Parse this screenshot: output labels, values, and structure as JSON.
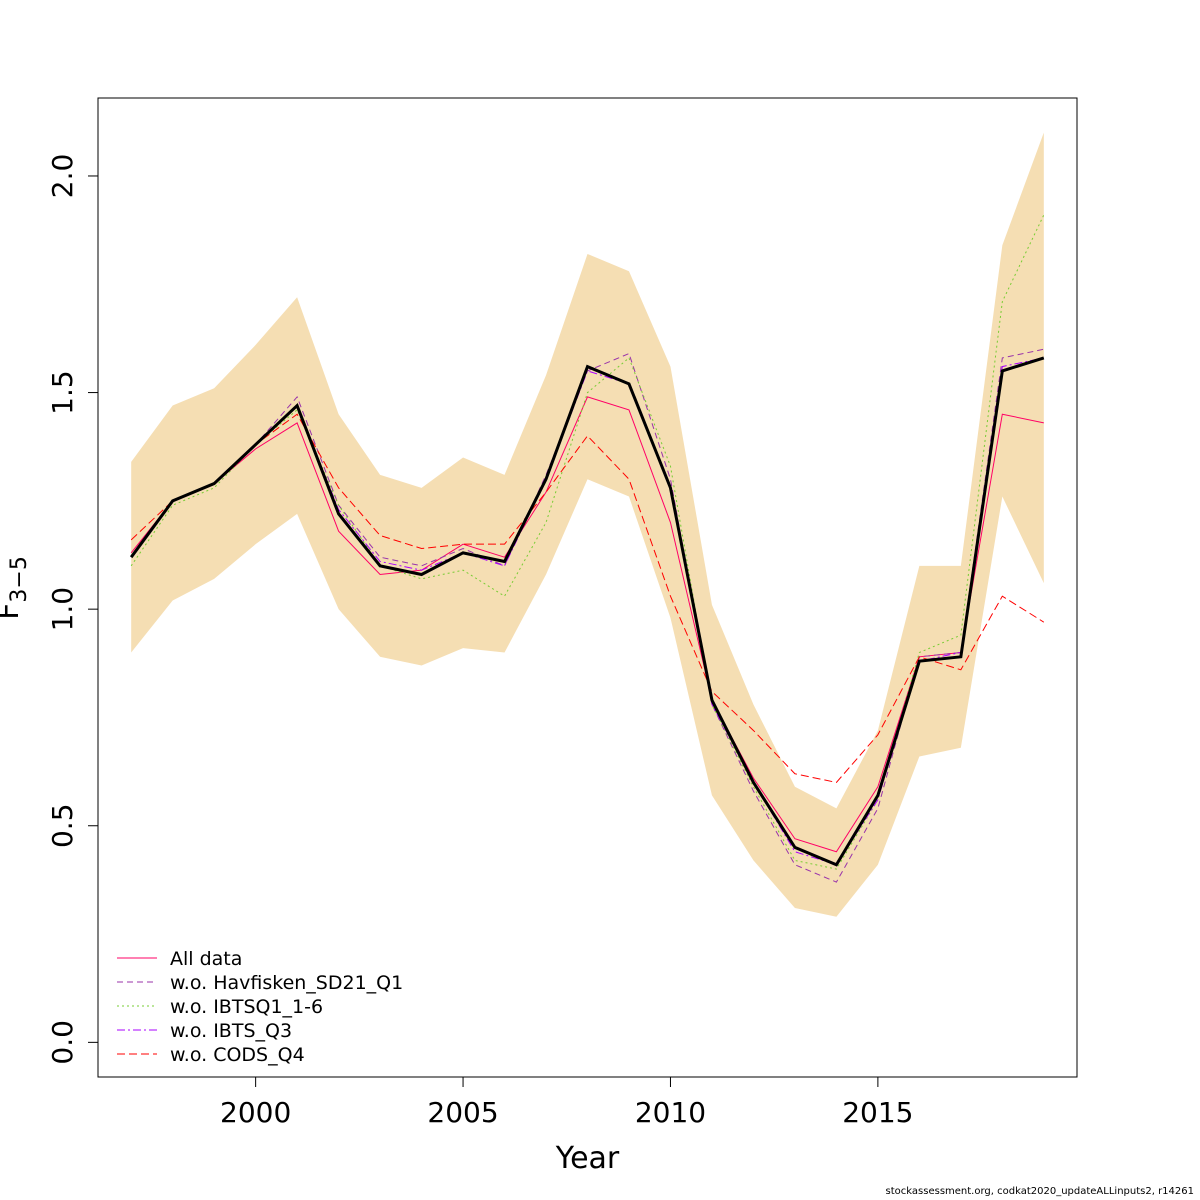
{
  "chart_data": {
    "type": "line",
    "title": "",
    "xlabel": "Year",
    "ylabel": "F",
    "ylabel_subscript": "3−5",
    "xlim": [
      1996.2,
      2019.8
    ],
    "ylim": [
      -0.08,
      2.18
    ],
    "x_ticks": [
      2000,
      2005,
      2010,
      2015
    ],
    "y_ticks": [
      0.0,
      0.5,
      1.0,
      1.5,
      2.0
    ],
    "y_tick_labels": [
      "0.0",
      "0.5",
      "1.0",
      "1.5",
      "2.0"
    ],
    "grid": false,
    "legend_position": "bottom-left",
    "x": [
      1997,
      1998,
      1999,
      2000,
      2001,
      2002,
      2003,
      2004,
      2005,
      2006,
      2007,
      2008,
      2009,
      2010,
      2011,
      2012,
      2013,
      2014,
      2015,
      2016,
      2017,
      2018,
      2019
    ],
    "confidence_band": {
      "color": "#f5deb3",
      "lower": [
        0.9,
        1.02,
        1.07,
        1.15,
        1.22,
        1.0,
        0.89,
        0.87,
        0.91,
        0.9,
        1.08,
        1.3,
        1.26,
        0.98,
        0.57,
        0.42,
        0.31,
        0.29,
        0.41,
        0.66,
        0.68,
        1.26,
        1.06
      ],
      "upper": [
        1.34,
        1.47,
        1.51,
        1.61,
        1.72,
        1.45,
        1.31,
        1.28,
        1.35,
        1.31,
        1.54,
        1.82,
        1.78,
        1.56,
        1.01,
        0.78,
        0.59,
        0.54,
        0.72,
        1.1,
        1.1,
        1.84,
        2.1
      ]
    },
    "main_line": {
      "color": "#000000",
      "values": [
        1.12,
        1.25,
        1.29,
        1.38,
        1.47,
        1.22,
        1.1,
        1.08,
        1.13,
        1.11,
        1.3,
        1.56,
        1.52,
        1.28,
        0.79,
        0.6,
        0.45,
        0.41,
        0.57,
        0.88,
        0.89,
        1.55,
        1.58
      ]
    },
    "series": [
      {
        "name": "All data",
        "color": "#ff0066",
        "dash": "",
        "values": [
          1.13,
          1.25,
          1.29,
          1.37,
          1.43,
          1.18,
          1.08,
          1.09,
          1.15,
          1.12,
          1.27,
          1.49,
          1.46,
          1.2,
          0.79,
          0.61,
          0.47,
          0.44,
          0.59,
          0.89,
          0.9,
          1.45,
          1.43
        ]
      },
      {
        "name": "w.o. Havfisken_SD21_Q1",
        "color": "#9933aa",
        "dash": "6,4",
        "values": [
          1.12,
          1.25,
          1.29,
          1.38,
          1.49,
          1.24,
          1.12,
          1.1,
          1.14,
          1.1,
          1.31,
          1.55,
          1.59,
          1.3,
          0.78,
          0.58,
          0.41,
          0.37,
          0.54,
          0.89,
          0.9,
          1.58,
          1.6
        ]
      },
      {
        "name": "w.o. IBTSQ1_1-6",
        "color": "#77cc33",
        "dash": "2,3",
        "values": [
          1.1,
          1.24,
          1.28,
          1.38,
          1.46,
          1.24,
          1.1,
          1.07,
          1.09,
          1.03,
          1.2,
          1.5,
          1.58,
          1.33,
          0.78,
          0.59,
          0.42,
          0.4,
          0.56,
          0.9,
          0.94,
          1.71,
          1.91
        ]
      },
      {
        "name": "w.o. IBTS_Q3",
        "color": "#aa00ff",
        "dash": "8,3,2,3",
        "values": [
          1.12,
          1.25,
          1.29,
          1.38,
          1.47,
          1.23,
          1.11,
          1.09,
          1.13,
          1.1,
          1.3,
          1.55,
          1.52,
          1.28,
          0.78,
          0.6,
          0.44,
          0.41,
          0.56,
          0.88,
          0.9,
          1.56,
          1.58
        ]
      },
      {
        "name": "w.o. CODS_Q4",
        "color": "#ff0000",
        "dash": "8,4",
        "values": [
          1.16,
          1.25,
          1.29,
          1.38,
          1.45,
          1.28,
          1.17,
          1.14,
          1.15,
          1.15,
          1.27,
          1.4,
          1.3,
          1.03,
          0.81,
          0.72,
          0.62,
          0.6,
          0.71,
          0.89,
          0.86,
          1.03,
          0.97
        ]
      }
    ]
  },
  "footer_text": "stockassessment.org, codkat2020_updateALLinputs2, r14261"
}
